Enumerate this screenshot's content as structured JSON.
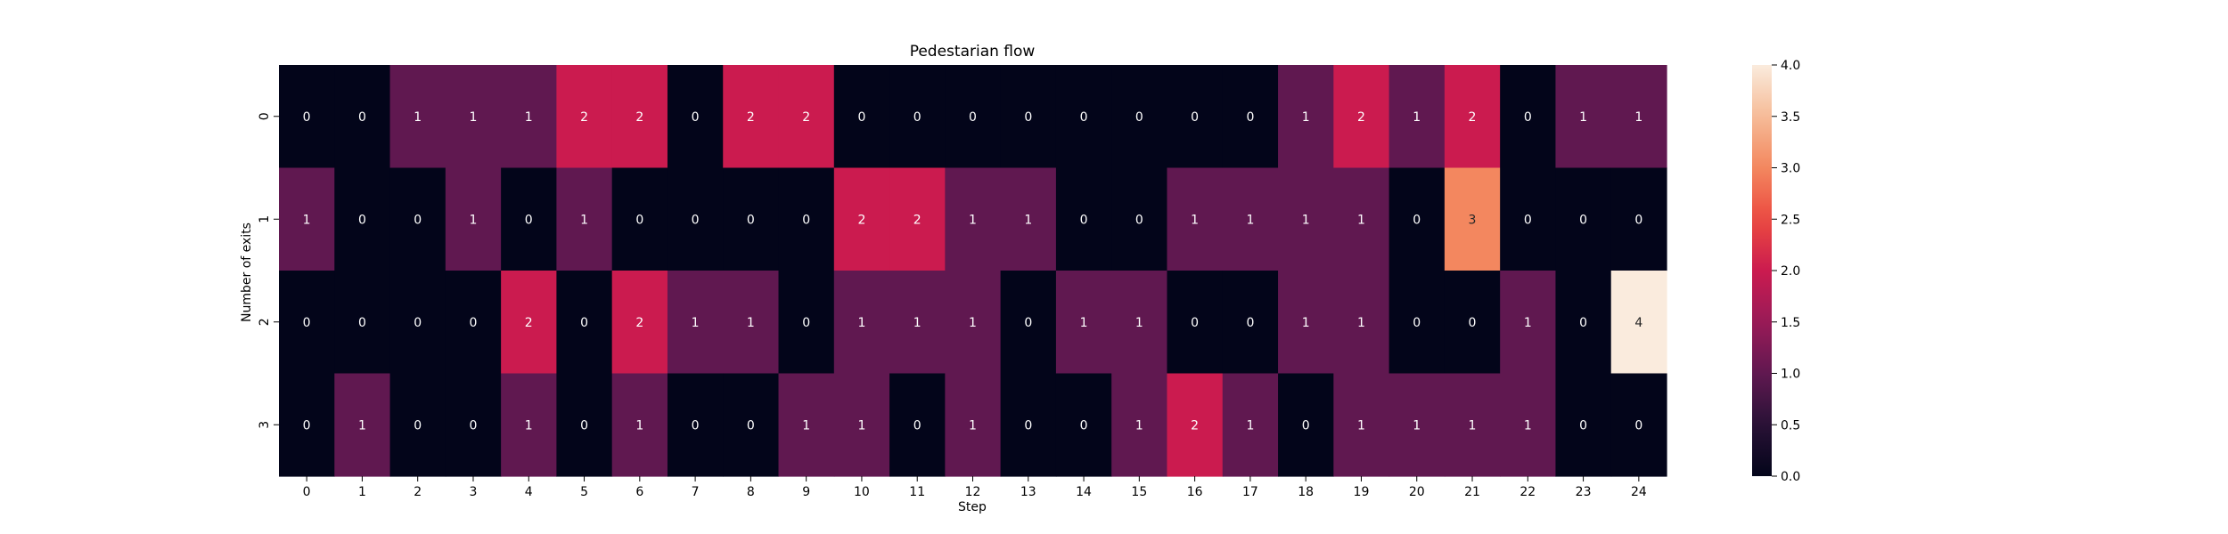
{
  "chart_data": {
    "type": "heatmap",
    "title": "Pedestarian flow",
    "xlabel": "Step",
    "ylabel": "Number of exits",
    "x_categories": [
      "0",
      "1",
      "2",
      "3",
      "4",
      "5",
      "6",
      "7",
      "8",
      "9",
      "10",
      "11",
      "12",
      "13",
      "14",
      "15",
      "16",
      "17",
      "18",
      "19",
      "20",
      "21",
      "22",
      "23",
      "24"
    ],
    "y_categories": [
      "0",
      "1",
      "2",
      "3"
    ],
    "values": [
      [
        0,
        0,
        1,
        1,
        1,
        2,
        2,
        0,
        2,
        2,
        0,
        0,
        0,
        0,
        0,
        0,
        0,
        0,
        1,
        2,
        1,
        2,
        0,
        1,
        1
      ],
      [
        1,
        0,
        0,
        1,
        0,
        1,
        0,
        0,
        0,
        0,
        2,
        2,
        1,
        1,
        0,
        0,
        1,
        1,
        1,
        1,
        0,
        3,
        0,
        0,
        0
      ],
      [
        0,
        0,
        0,
        0,
        2,
        0,
        2,
        1,
        1,
        0,
        1,
        1,
        1,
        0,
        1,
        1,
        0,
        0,
        1,
        1,
        0,
        0,
        1,
        0,
        4
      ],
      [
        0,
        1,
        0,
        0,
        1,
        0,
        1,
        0,
        0,
        1,
        1,
        0,
        1,
        0,
        0,
        1,
        2,
        1,
        0,
        1,
        1,
        1,
        1,
        0,
        0
      ]
    ],
    "colorbar": {
      "range": [
        0,
        4
      ],
      "ticks": [
        "0.0",
        "0.5",
        "1.0",
        "1.5",
        "2.0",
        "2.5",
        "3.0",
        "3.5",
        "4.0"
      ],
      "colormap": "rocket"
    },
    "annotations": true
  }
}
